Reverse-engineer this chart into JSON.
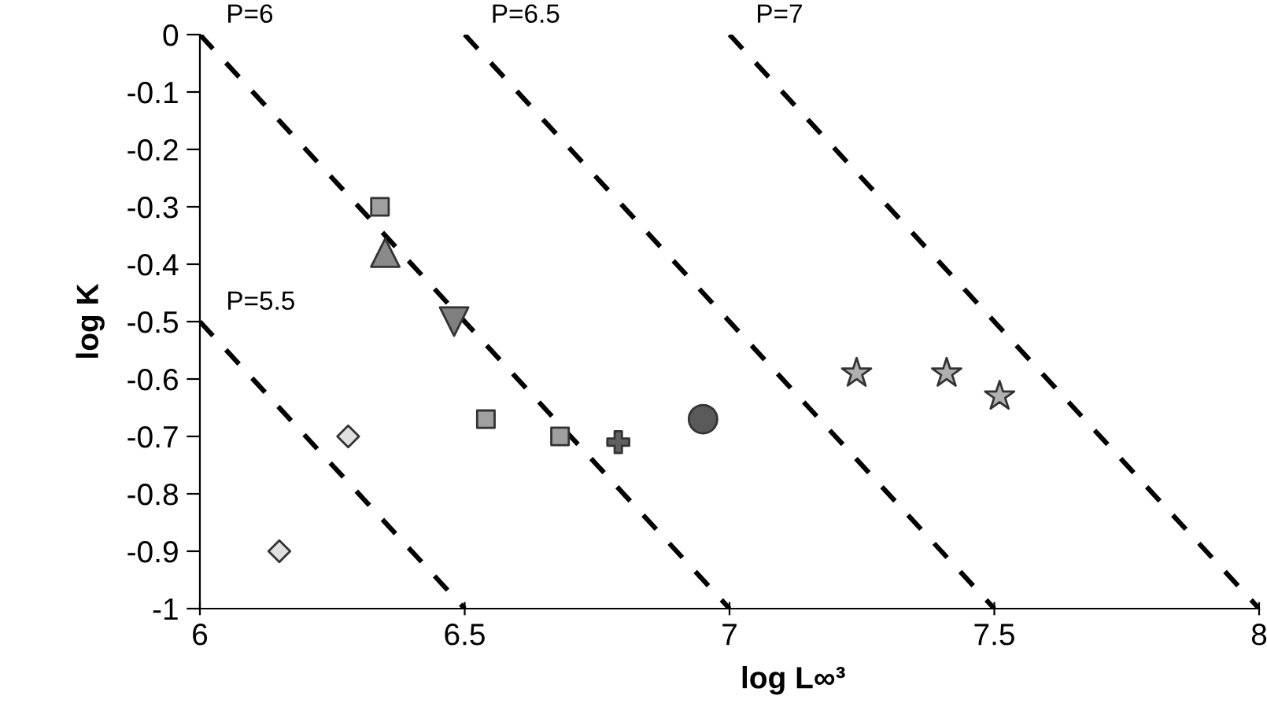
{
  "chart_data": {
    "type": "scatter",
    "xlabel": "log L∞³",
    "ylabel": "log K",
    "xlim": [
      6,
      8
    ],
    "xticks": [
      6,
      6.5,
      7,
      7.5,
      8
    ],
    "ylim": [
      -1,
      0
    ],
    "yticks": [
      0,
      -0.1,
      -0.2,
      -0.3,
      -0.4,
      -0.5,
      -0.6,
      -0.7,
      -0.8,
      -0.9,
      -1
    ],
    "grid": false,
    "legend": false,
    "series": [
      {
        "type": "line",
        "name": "P=5.5",
        "x": [
          6,
          6.5
        ],
        "values": [
          -0.5,
          -1
        ],
        "color": "#000000",
        "line_style": "dashed",
        "marker": "none"
      },
      {
        "type": "line",
        "name": "P=6",
        "x": [
          6,
          7
        ],
        "values": [
          0,
          -1
        ],
        "color": "#000000",
        "line_style": "dashed",
        "marker": "none"
      },
      {
        "type": "line",
        "name": "P=6.5",
        "x": [
          6.5,
          7.5
        ],
        "values": [
          0,
          -1
        ],
        "color": "#000000",
        "line_style": "dashed",
        "marker": "none"
      },
      {
        "type": "line",
        "name": "P=7",
        "x": [
          7,
          8
        ],
        "values": [
          0,
          -1
        ],
        "color": "#000000",
        "line_style": "dashed",
        "marker": "none"
      },
      {
        "x": [
          6.15,
          6.28
        ],
        "values": [
          -0.9,
          -0.7
        ],
        "color": "#e0e0e0",
        "marker": "diamond"
      },
      {
        "x": [
          6.34,
          6.54,
          6.68
        ],
        "values": [
          -0.3,
          -0.67,
          -0.7
        ],
        "color": "#a0a0a0",
        "marker": "square"
      },
      {
        "x": [
          6.35
        ],
        "values": [
          -0.38
        ],
        "color": "#8a8a8a",
        "marker": "triangle"
      },
      {
        "x": [
          6.48
        ],
        "values": [
          -0.5
        ],
        "color": "#808080",
        "marker": "triangle_down"
      },
      {
        "x": [
          6.79
        ],
        "values": [
          -0.71
        ],
        "color": "#606060",
        "marker": "cross"
      },
      {
        "x": [
          6.95
        ],
        "values": [
          -0.67
        ],
        "color": "#5a5a5a",
        "marker": "circle"
      },
      {
        "x": [
          7.24,
          7.41,
          7.51
        ],
        "values": [
          -0.59,
          -0.59,
          -0.63
        ],
        "color": "#b0b0b0",
        "marker": "star"
      }
    ]
  }
}
